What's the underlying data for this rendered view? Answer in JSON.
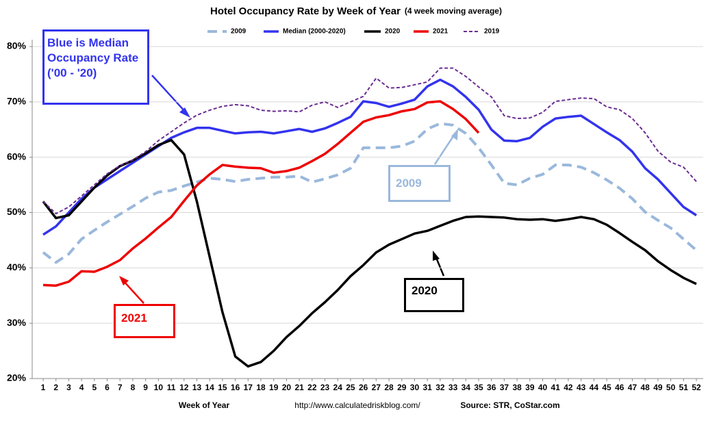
{
  "chart_data": {
    "type": "line",
    "title": "Hotel Occupancy Rate by  Week of Year",
    "subtitle": "(4 week moving average)",
    "x_label": "Week of Year",
    "source_url": "http://www.calculatedriskblog.com/",
    "source": "Source: STR, CoStar.com",
    "annotations": [
      "Blue is Median Occupancy Rate ('00 - '20)",
      "2009",
      "2020",
      "2021"
    ],
    "categories": [
      1,
      2,
      3,
      4,
      5,
      6,
      7,
      8,
      9,
      10,
      11,
      12,
      13,
      14,
      15,
      16,
      17,
      18,
      19,
      20,
      21,
      22,
      23,
      24,
      25,
      26,
      27,
      28,
      29,
      30,
      31,
      32,
      33,
      34,
      35,
      36,
      37,
      38,
      39,
      40,
      41,
      42,
      43,
      44,
      45,
      46,
      47,
      48,
      49,
      50,
      51,
      52
    ],
    "ylim": [
      20,
      80
    ],
    "yticks": [
      {
        "value": 20,
        "label": "20%"
      },
      {
        "value": 30,
        "label": "30%"
      },
      {
        "value": 40,
        "label": "40%"
      },
      {
        "value": 50,
        "label": "50%"
      },
      {
        "value": 60,
        "label": "60%"
      },
      {
        "value": 70,
        "label": "70%"
      },
      {
        "value": 80,
        "label": "80%"
      }
    ],
    "grid": true,
    "legend": "top",
    "series": [
      {
        "name": "2009",
        "color": "#9ab8dc",
        "style": "dashed",
        "values": [
          42.8,
          41,
          42.5,
          45.2,
          46.8,
          48.3,
          49.7,
          51.1,
          52.6,
          53.7,
          54,
          54.8,
          55.5,
          56.2,
          56,
          55.6,
          56,
          56.2,
          56.4,
          56.4,
          56.6,
          55.5,
          56.1,
          56.8,
          58,
          61.7,
          61.7,
          61.7,
          62,
          62.9,
          65.1,
          66.1,
          65.8,
          64.3,
          61.7,
          58.6,
          55.3,
          55,
          56.2,
          56.9,
          58.6,
          58.6,
          58.2,
          57.2,
          55.9,
          54.4,
          52.5,
          50.1,
          48.6,
          47.2,
          45.2,
          43.2
        ]
      },
      {
        "name": "Median (2000-2020)",
        "color": "#3333ee",
        "style": "solid",
        "values": [
          46,
          47.5,
          50,
          52.5,
          54.5,
          56,
          57.5,
          59,
          60.5,
          62,
          63.5,
          64.5,
          65.3,
          65.3,
          64.8,
          64.3,
          64.5,
          64.6,
          64.3,
          64.7,
          65.1,
          64.6,
          65.2,
          66.2,
          67.3,
          70.1,
          69.8,
          69.1,
          69.7,
          70.4,
          72.8,
          74,
          72.8,
          70.9,
          68.6,
          65,
          63,
          62.9,
          63.5,
          65.5,
          67,
          67.3,
          67.5,
          66,
          64.5,
          63.1,
          61,
          58,
          56,
          53.5,
          51,
          49.5
        ]
      },
      {
        "name": "2020",
        "color": "#000000",
        "style": "solid",
        "values": [
          52,
          49,
          49.5,
          52,
          54.5,
          56.7,
          58.4,
          59.4,
          60.7,
          62.2,
          63.1,
          60.5,
          52,
          42,
          32,
          24,
          22.2,
          23,
          25,
          27.5,
          29.5,
          31.8,
          33.8,
          36,
          38.5,
          40.5,
          42.8,
          44.2,
          45.2,
          46.2,
          46.7,
          47.6,
          48.5,
          49.2,
          49.3,
          49.2,
          49.1,
          48.8,
          48.7,
          48.8,
          48.5,
          48.8,
          49.2,
          48.8,
          47.8,
          46.3,
          44.7,
          43.2,
          41.2,
          39.6,
          38.2,
          37.1
        ]
      },
      {
        "name": "2021",
        "color": "#ee0000",
        "style": "solid",
        "values": [
          36.9,
          36.8,
          37.5,
          39.4,
          39.3,
          40.2,
          41.4,
          43.5,
          45.3,
          47.3,
          49.2,
          52.1,
          54.9,
          56.9,
          58.6,
          58.3,
          58.1,
          58,
          57.2,
          57.5,
          58.1,
          59.3,
          60.6,
          62.4,
          64.4,
          66.4,
          67.2,
          67.6,
          68.3,
          68.7,
          69.9,
          70.1,
          68.7,
          66.9,
          64.4,
          null,
          null,
          null,
          null,
          null,
          null,
          null,
          null,
          null,
          null,
          null,
          null,
          null,
          null,
          null,
          null,
          null
        ]
      },
      {
        "name": "2019",
        "color": "#6a2c91",
        "style": "dashed",
        "values": [
          52,
          49.8,
          51,
          53,
          55,
          57,
          58.5,
          59.5,
          61,
          63,
          64.6,
          66.2,
          67.6,
          68.5,
          69.2,
          69.5,
          69.3,
          68.5,
          68.3,
          68.4,
          68.2,
          69.4,
          70,
          69,
          70,
          71,
          74.3,
          72.5,
          72.6,
          73.1,
          73.6,
          76.1,
          76.1,
          74.6,
          72.7,
          70.9,
          67.5,
          67,
          67.1,
          68.1,
          70.1,
          70.4,
          70.7,
          70.6,
          69.1,
          68.6,
          67,
          64.4,
          61.1,
          59.1,
          58.2,
          55.6
        ]
      }
    ]
  }
}
